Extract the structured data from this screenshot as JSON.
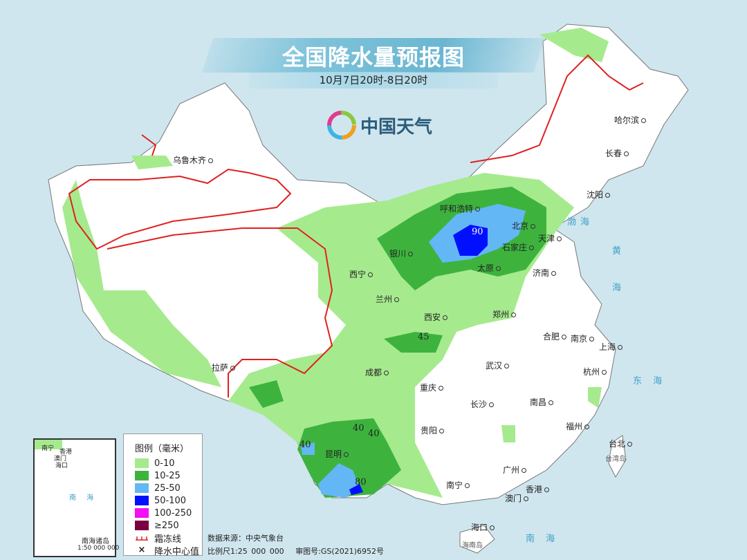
{
  "title": "全国降水量预报图",
  "subtitle": "10月7日20时-8日20时",
  "logo": {
    "text": "中国天气"
  },
  "colors": {
    "c0_10": "#a6ea8e",
    "c10_25": "#3db33e",
    "c25_50": "#64b7f5",
    "c50_100": "#0010ff",
    "c100_250": "#f30ef3",
    "c250": "#7a0040",
    "frost": "#e02020",
    "land": "#ffffff",
    "sea": "#cfe6ef"
  },
  "cities": [
    "乌鲁木齐",
    "哈尔滨",
    "长春",
    "沈阳",
    "北京",
    "天津",
    "呼和浩特",
    "石家庄",
    "太原",
    "济南",
    "银川",
    "西宁",
    "兰州",
    "郑州",
    "西安",
    "合肥",
    "南京",
    "上海",
    "武汉",
    "成都",
    "拉萨",
    "重庆",
    "杭州",
    "长沙",
    "南昌",
    "贵阳",
    "福州",
    "台北",
    "昆明",
    "广州",
    "南宁",
    "澳门",
    "香港",
    "海口"
  ],
  "seas": [
    "渤海",
    "黄",
    "海",
    "东 海",
    "南 海",
    "台湾岛",
    "海南岛"
  ],
  "centers": [
    "90",
    "45",
    "40",
    "40",
    "40",
    "80"
  ],
  "legend": {
    "title": "图例（毫米）",
    "items": [
      "0-10",
      "10-25",
      "25-50",
      "50-100",
      "100-250",
      "≥250"
    ],
    "frost": "霜冻线",
    "center": "降水中心值"
  },
  "inset": {
    "name": "南海诸岛",
    "scale": "1:50 000 000",
    "labels": [
      "南宁",
      "香港",
      "澳门",
      "海口",
      "南 海"
    ]
  },
  "footer": {
    "source": "数据来源：中央气象台",
    "scale": "比例尺1:25 000 000",
    "approval": "审图号:GS(2021)6952号"
  }
}
